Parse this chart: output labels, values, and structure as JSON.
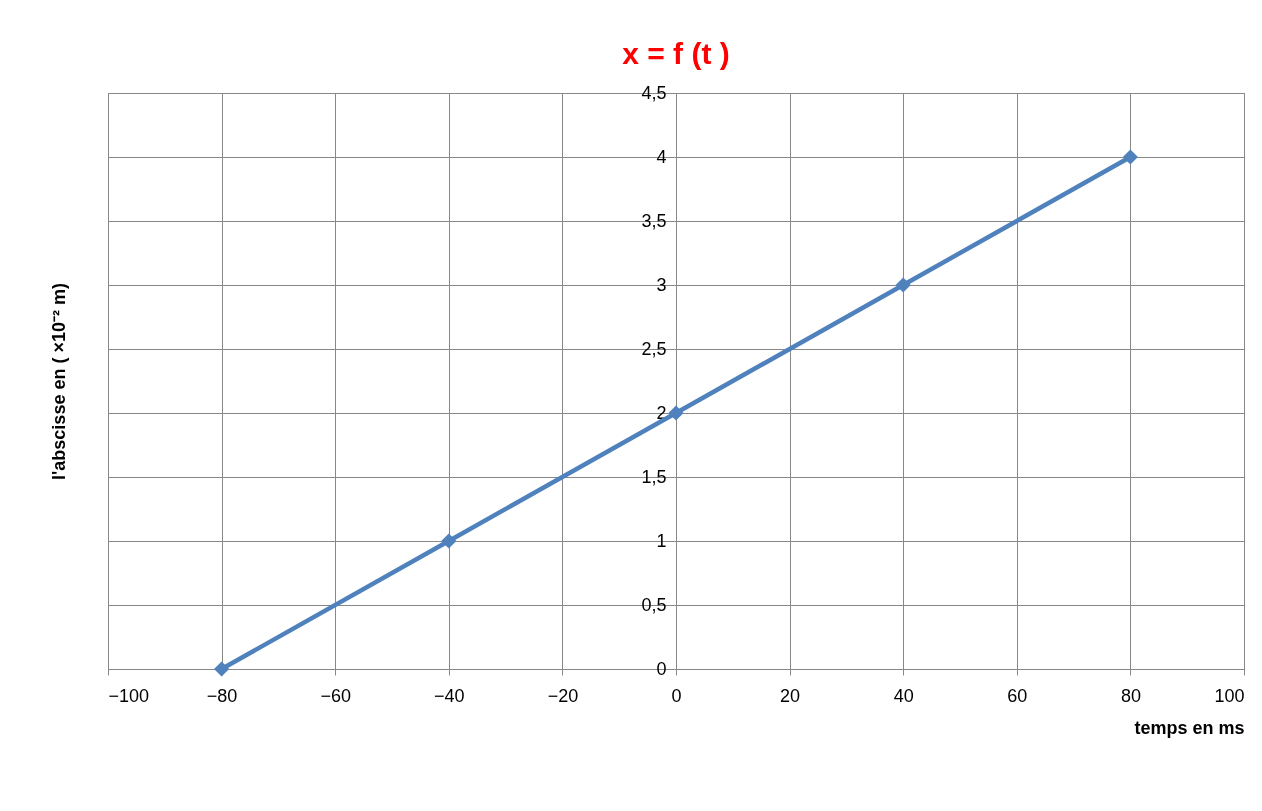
{
  "chart_data": {
    "type": "line",
    "title": "x = f (t )",
    "xlabel": "temps en ms",
    "ylabel": "l'abscisse en ( ×10⁻² m)",
    "x": [
      -80,
      -40,
      0,
      40,
      80
    ],
    "series": [
      {
        "color": "#4f81bd",
        "values": [
          0,
          1,
          2,
          3,
          4
        ]
      }
    ],
    "xlim": [
      -100,
      100
    ],
    "xticks": [
      -100,
      -80,
      -60,
      -40,
      -20,
      0,
      20,
      40,
      60,
      80,
      100
    ],
    "ylim": [
      0,
      4.5
    ],
    "yticks": [
      0,
      {
        "value": 0.5,
        "label": "0,5"
      },
      1,
      {
        "value": 1.5,
        "label": "1,5"
      },
      2,
      {
        "value": 2.5,
        "label": "2,5"
      },
      3,
      {
        "value": 3.5,
        "label": "3,5"
      },
      4,
      {
        "value": 4.5,
        "label": "4,5"
      }
    ],
    "grid": true,
    "marker": "diamond",
    "line_style": "solid"
  }
}
